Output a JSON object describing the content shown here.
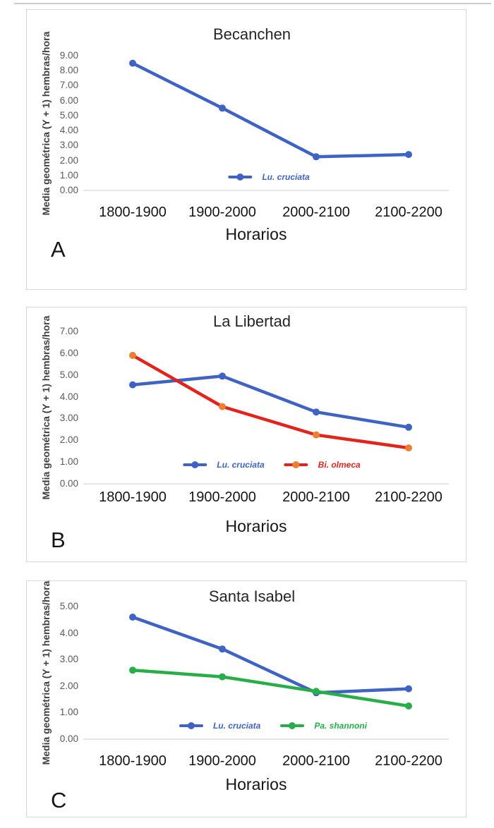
{
  "figure": {
    "panels": [
      {
        "letter": "A"
      },
      {
        "letter": "B"
      },
      {
        "letter": "C"
      }
    ]
  },
  "chart_data": [
    {
      "type": "line",
      "title": "Becanchen",
      "xlabel": "Horarios",
      "ylabel": "Media geométrica (Y + 1) hembras/hora",
      "categories": [
        "1800-1900",
        "1900-2000",
        "2000-2100",
        "2100-2200"
      ],
      "series": [
        {
          "name": "Lu. cruciata",
          "color": "#3E63C4",
          "marker_color": "#3E63C4",
          "values": [
            8.5,
            5.5,
            2.25,
            2.4
          ]
        }
      ],
      "ylim": [
        0,
        9
      ],
      "ytick_step": 1,
      "ytick_format": "2-decimals",
      "grid": false,
      "legend_position": "inside-bottom-center"
    },
    {
      "type": "line",
      "title": "La Libertad",
      "xlabel": "Horarios",
      "ylabel": "Media geométrica (Y + 1) hembras/hora",
      "categories": [
        "1800-1900",
        "1900-2000",
        "2000-2100",
        "2100-2200"
      ],
      "series": [
        {
          "name": "Lu. cruciata",
          "color": "#3E63C4",
          "marker_color": "#3E63C4",
          "values": [
            4.55,
            4.95,
            3.3,
            2.6
          ]
        },
        {
          "name": "Bi. olmeca",
          "color": "#E2241D",
          "marker_color": "#ED7D31",
          "values": [
            5.9,
            3.55,
            2.25,
            1.65
          ]
        }
      ],
      "ylim": [
        0,
        7
      ],
      "ytick_step": 1,
      "ytick_format": "2-decimals",
      "grid": false,
      "legend_position": "inside-bottom-center"
    },
    {
      "type": "line",
      "title": "Santa Isabel",
      "xlabel": "Horarios",
      "ylabel": "Media geométrica (Y + 1) hembras/hora",
      "categories": [
        "1800-1900",
        "1900-2000",
        "2000-2100",
        "2100-2200"
      ],
      "series": [
        {
          "name": "Lu. cruciata",
          "color": "#3E63C4",
          "marker_color": "#3E63C4",
          "values": [
            4.6,
            3.4,
            1.75,
            1.9
          ]
        },
        {
          "name": "Pa. shannoni",
          "color": "#27AE49",
          "marker_color": "#27AE49",
          "values": [
            2.6,
            2.35,
            1.8,
            1.25
          ]
        }
      ],
      "ylim": [
        0,
        5
      ],
      "ytick_step": 1,
      "ytick_format": "2-decimals",
      "grid": false,
      "legend_position": "inside-bottom-center"
    }
  ]
}
